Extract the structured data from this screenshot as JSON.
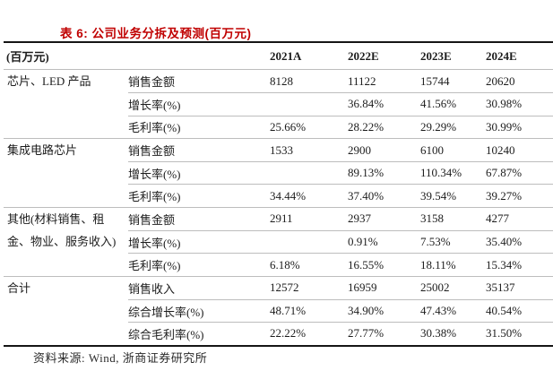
{
  "title": "表 6: 公司业务分拆及预测(百万元)",
  "accent_color": "#c00000",
  "table": {
    "unit_header": "(百万元)",
    "col_headers": [
      "2021A",
      "2022E",
      "2023E",
      "2024E"
    ],
    "groups": [
      {
        "label": "芯片、LED 产品",
        "rows": [
          {
            "metric": "销售金额",
            "values": [
              "8128",
              "11122",
              "15744",
              "20620"
            ]
          },
          {
            "metric": "增长率(%)",
            "values": [
              "",
              "36.84%",
              "41.56%",
              "30.98%"
            ]
          },
          {
            "metric": "毛利率(%)",
            "values": [
              "25.66%",
              "28.22%",
              "29.29%",
              "30.99%"
            ]
          }
        ]
      },
      {
        "label": "集成电路芯片",
        "rows": [
          {
            "metric": "销售金额",
            "values": [
              "1533",
              "2900",
              "6100",
              "10240"
            ]
          },
          {
            "metric": "增长率(%)",
            "values": [
              "",
              "89.13%",
              "110.34%",
              "67.87%"
            ]
          },
          {
            "metric": "毛利率(%)",
            "values": [
              "34.44%",
              "37.40%",
              "39.54%",
              "39.27%"
            ]
          }
        ]
      },
      {
        "label": "其他(材料销售、租金、物业、服务收入)",
        "rows": [
          {
            "metric": "销售金额",
            "values": [
              "2911",
              "2937",
              "3158",
              "4277"
            ]
          },
          {
            "metric": "增长率(%)",
            "values": [
              "",
              "0.91%",
              "7.53%",
              "35.40%"
            ]
          },
          {
            "metric": "毛利率(%)",
            "values": [
              "6.18%",
              "16.55%",
              "18.11%",
              "15.34%"
            ]
          }
        ]
      },
      {
        "label": "合计",
        "rows": [
          {
            "metric": "销售收入",
            "values": [
              "12572",
              "16959",
              "25002",
              "35137"
            ]
          },
          {
            "metric": "综合增长率(%)",
            "values": [
              "48.71%",
              "34.90%",
              "47.43%",
              "40.54%"
            ]
          },
          {
            "metric": "综合毛利率(%)",
            "values": [
              "22.22%",
              "27.77%",
              "30.38%",
              "31.50%"
            ]
          }
        ]
      }
    ]
  },
  "footer": {
    "source": "资料来源: Wind, 浙商证券研究所"
  }
}
